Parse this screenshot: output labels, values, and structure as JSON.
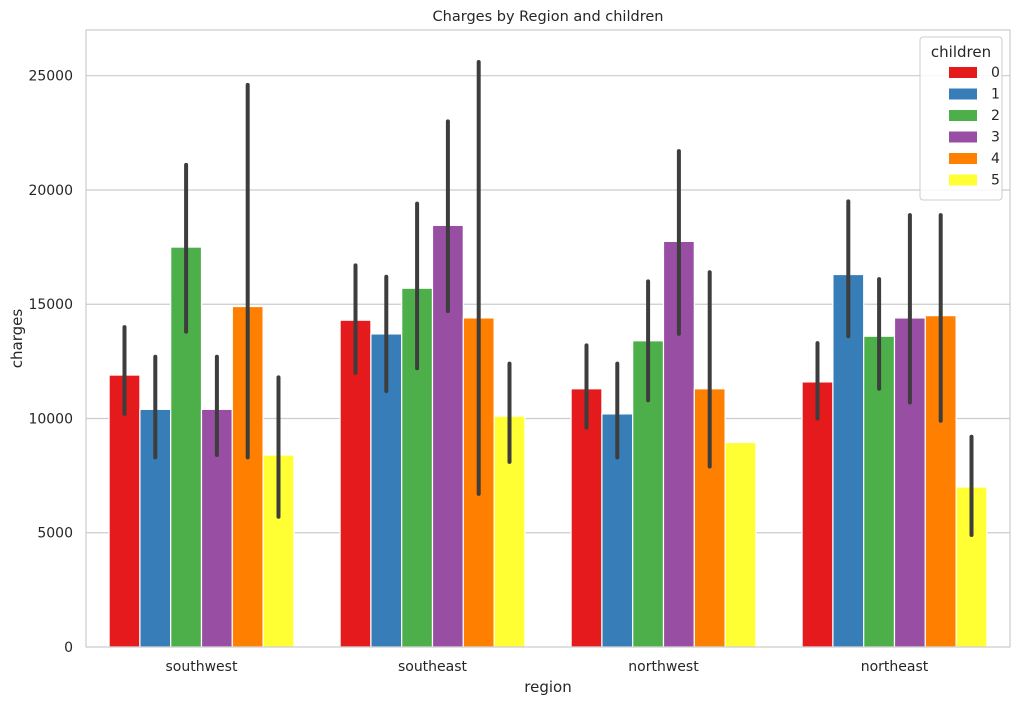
{
  "chart_data": {
    "type": "bar",
    "title": "Charges by Region and children",
    "xlabel": "region",
    "ylabel": "charges",
    "categories": [
      "southwest",
      "southeast",
      "northwest",
      "northeast"
    ],
    "ylim": [
      0,
      27000
    ],
    "yticks": [
      0,
      5000,
      10000,
      15000,
      20000,
      25000
    ],
    "grid": true,
    "legend": {
      "title": "children",
      "placement": "top-right"
    },
    "colors": [
      "#e41a1c",
      "#377eb8",
      "#4daf4a",
      "#984ea3",
      "#ff7f00",
      "#ffff33"
    ],
    "series": [
      {
        "name": "0",
        "values": [
          11900,
          14300,
          11300,
          11600
        ],
        "ci_low": [
          10200,
          12000,
          9600,
          10000
        ],
        "ci_high": [
          14000,
          16700,
          13200,
          13300
        ]
      },
      {
        "name": "1",
        "values": [
          10400,
          13700,
          10200,
          16300
        ],
        "ci_low": [
          8300,
          11200,
          8300,
          13600
        ],
        "ci_high": [
          12700,
          16200,
          12400,
          19500
        ]
      },
      {
        "name": "2",
        "values": [
          17500,
          15700,
          13400,
          13600
        ],
        "ci_low": [
          13800,
          12200,
          10800,
          11300
        ],
        "ci_high": [
          21100,
          19400,
          16000,
          16100
        ]
      },
      {
        "name": "3",
        "values": [
          10400,
          18450,
          17750,
          14400
        ],
        "ci_low": [
          8400,
          14700,
          13700,
          10700
        ],
        "ci_high": [
          12700,
          23000,
          21700,
          18900
        ]
      },
      {
        "name": "4",
        "values": [
          14900,
          14400,
          11300,
          14500
        ],
        "ci_low": [
          8300,
          6700,
          7900,
          9900
        ],
        "ci_high": [
          24600,
          25600,
          16400,
          18900
        ]
      },
      {
        "name": "5",
        "values": [
          8400,
          10100,
          8950,
          7000
        ],
        "ci_low": [
          5700,
          8100,
          null,
          4900
        ],
        "ci_high": [
          11800,
          12400,
          null,
          9200
        ]
      }
    ]
  }
}
